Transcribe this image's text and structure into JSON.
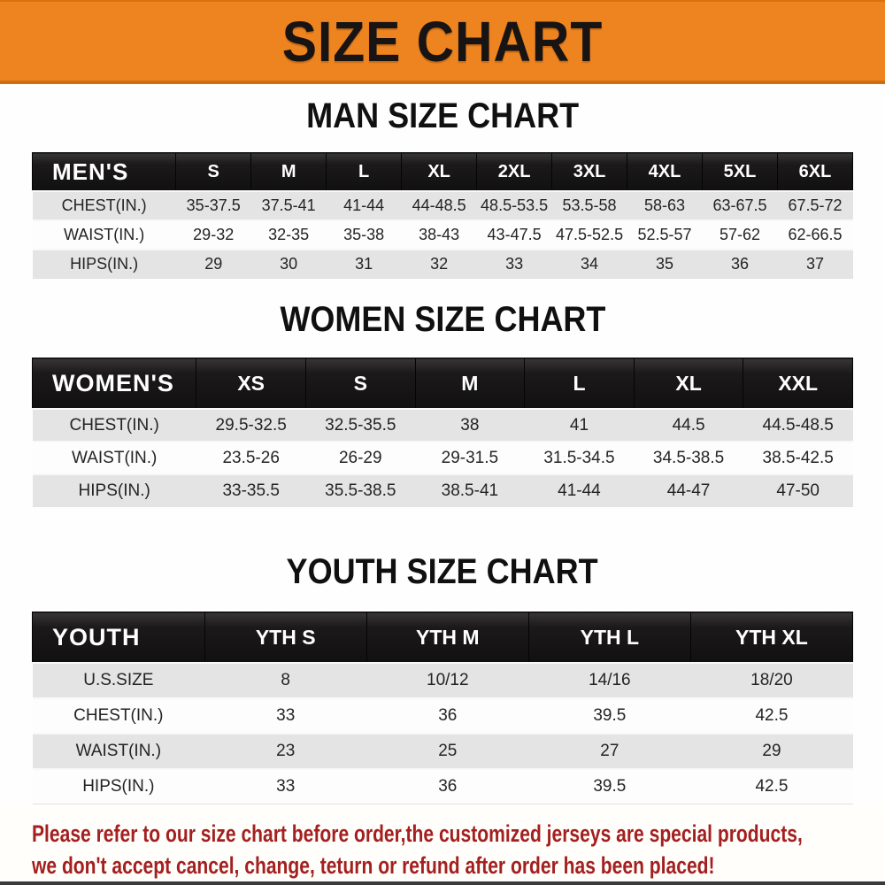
{
  "banner": {
    "title": "SIZE CHART"
  },
  "colors": {
    "banner_bg": "#ee8420",
    "banner_text": "#181414",
    "header_bar": "#1b1919",
    "stripe": "#e4e4e5",
    "footer_text": "#a32020"
  },
  "sections": [
    {
      "heading": "MAN SIZE CHART",
      "table": {
        "label": "MEN'S",
        "columns": [
          "S",
          "M",
          "L",
          "XL",
          "2XL",
          "3XL",
          "4XL",
          "5XL",
          "6XL"
        ],
        "rows": [
          {
            "label": "CHEST(IN.)",
            "values": [
              "35-37.5",
              "37.5-41",
              "41-44",
              "44-48.5",
              "48.5-53.5",
              "53.5-58",
              "58-63",
              "63-67.5",
              "67.5-72"
            ]
          },
          {
            "label": "WAIST(IN.)",
            "values": [
              "29-32",
              "32-35",
              "35-38",
              "38-43",
              "43-47.5",
              "47.5-52.5",
              "52.5-57",
              "57-62",
              "62-66.5"
            ]
          },
          {
            "label": "HIPS(IN.)",
            "values": [
              "29",
              "30",
              "31",
              "32",
              "33",
              "34",
              "35",
              "36",
              "37"
            ]
          }
        ]
      }
    },
    {
      "heading": "WOMEN SIZE CHART",
      "table": {
        "label": "WOMEN'S",
        "columns": [
          "XS",
          "S",
          "M",
          "L",
          "XL",
          "XXL"
        ],
        "rows": [
          {
            "label": "CHEST(IN.)",
            "values": [
              "29.5-32.5",
              "32.5-35.5",
              "38",
              "41",
              "44.5",
              "44.5-48.5"
            ]
          },
          {
            "label": "WAIST(IN.)",
            "values": [
              "23.5-26",
              "26-29",
              "29-31.5",
              "31.5-34.5",
              "34.5-38.5",
              "38.5-42.5"
            ]
          },
          {
            "label": "HIPS(IN.)",
            "values": [
              "33-35.5",
              "35.5-38.5",
              "38.5-41",
              "41-44",
              "44-47",
              "47-50"
            ]
          }
        ]
      }
    },
    {
      "heading": "YOUTH SIZE CHART",
      "table": {
        "label": "YOUTH",
        "columns": [
          "YTH S",
          "YTH M",
          "YTH L",
          "YTH XL"
        ],
        "rows": [
          {
            "label": "U.S.SIZE",
            "values": [
              "8",
              "10/12",
              "14/16",
              "18/20"
            ]
          },
          {
            "label": "CHEST(IN.)",
            "values": [
              "33",
              "36",
              "39.5",
              "42.5"
            ]
          },
          {
            "label": "WAIST(IN.)",
            "values": [
              "23",
              "25",
              "27",
              "29"
            ]
          },
          {
            "label": "HIPS(IN.)",
            "values": [
              "33",
              "36",
              "39.5",
              "42.5"
            ]
          }
        ]
      }
    }
  ],
  "footer": {
    "lines": [
      "Please refer to our size chart before order,the customized jerseys are special products,",
      "we don't accept cancel, change, teturn or refund after order has been placed!"
    ]
  }
}
